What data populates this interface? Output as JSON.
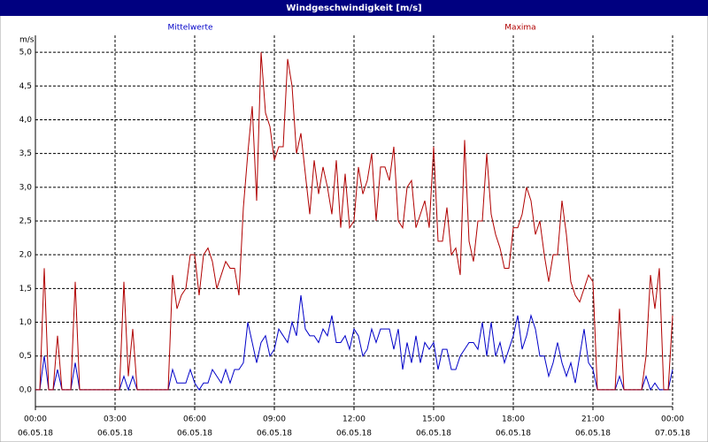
{
  "chart_data": {
    "type": "line",
    "title": "Windgeschwindigkeit [m/s]",
    "y_label": "m/s",
    "xlim": [
      0,
      1440
    ],
    "ylim": [
      -0.25,
      5.25
    ],
    "grid": true,
    "xticks": [
      {
        "value": 0,
        "label": "00:00",
        "date": "06.05.18"
      },
      {
        "value": 180,
        "label": "03:00",
        "date": "06.05.18"
      },
      {
        "value": 360,
        "label": "06:00",
        "date": "06.05.18"
      },
      {
        "value": 540,
        "label": "09:00",
        "date": "06.05.18"
      },
      {
        "value": 720,
        "label": "12:00",
        "date": "06.05.18"
      },
      {
        "value": 900,
        "label": "15:00",
        "date": "06.05.18"
      },
      {
        "value": 1080,
        "label": "18:00",
        "date": "06.05.18"
      },
      {
        "value": 1260,
        "label": "21:00",
        "date": "06.05.18"
      },
      {
        "value": 1440,
        "label": "00:00",
        "date": "07.05.18"
      }
    ],
    "yticks": [
      {
        "value": 0,
        "label": "0,0"
      },
      {
        "value": 0.5,
        "label": "0,5"
      },
      {
        "value": 1,
        "label": "1,0"
      },
      {
        "value": 1.5,
        "label": "1,5"
      },
      {
        "value": 2,
        "label": "2,0"
      },
      {
        "value": 2.5,
        "label": "2,5"
      },
      {
        "value": 3,
        "label": "3,0"
      },
      {
        "value": 3.5,
        "label": "3,5"
      },
      {
        "value": 4,
        "label": "4,0"
      },
      {
        "value": 4.5,
        "label": "4,5"
      },
      {
        "value": 5,
        "label": "5,0"
      }
    ],
    "x": [
      0,
      10,
      20,
      30,
      40,
      50,
      60,
      70,
      80,
      90,
      100,
      110,
      120,
      130,
      140,
      150,
      160,
      170,
      180,
      190,
      200,
      210,
      220,
      230,
      240,
      250,
      260,
      270,
      280,
      290,
      300,
      310,
      320,
      330,
      340,
      350,
      360,
      370,
      380,
      390,
      400,
      410,
      420,
      430,
      440,
      450,
      460,
      470,
      480,
      490,
      500,
      510,
      520,
      530,
      540,
      550,
      560,
      570,
      580,
      590,
      600,
      610,
      620,
      630,
      640,
      650,
      660,
      670,
      680,
      690,
      700,
      710,
      720,
      730,
      740,
      750,
      760,
      770,
      780,
      790,
      800,
      810,
      820,
      830,
      840,
      850,
      860,
      870,
      880,
      890,
      900,
      910,
      920,
      930,
      940,
      950,
      960,
      970,
      980,
      990,
      1000,
      1010,
      1020,
      1030,
      1040,
      1050,
      1060,
      1070,
      1080,
      1090,
      1100,
      1110,
      1120,
      1130,
      1140,
      1150,
      1160,
      1170,
      1180,
      1190,
      1200,
      1210,
      1220,
      1230,
      1240,
      1250,
      1260,
      1270,
      1280,
      1290,
      1300,
      1310,
      1320,
      1330,
      1340,
      1350,
      1360,
      1370,
      1380,
      1390,
      1400,
      1410,
      1420,
      1430,
      1440
    ],
    "series": [
      {
        "name": "Mittelwerte",
        "color": "#0000c8",
        "values": [
          0,
          0,
          0.5,
          0,
          0,
          0.3,
          0,
          0,
          0,
          0.4,
          0,
          0,
          0,
          0,
          0,
          0,
          0,
          0,
          0,
          0,
          0.2,
          0,
          0.2,
          0,
          0,
          0,
          0,
          0,
          0,
          0,
          0,
          0.3,
          0.1,
          0.1,
          0.1,
          0.3,
          0.1,
          0,
          0.1,
          0.1,
          0.3,
          0.2,
          0.1,
          0.3,
          0.1,
          0.3,
          0.3,
          0.4,
          1.0,
          0.7,
          0.4,
          0.7,
          0.8,
          0.5,
          0.6,
          0.9,
          0.8,
          0.7,
          1.0,
          0.8,
          1.4,
          0.9,
          0.8,
          0.8,
          0.7,
          0.9,
          0.8,
          1.1,
          0.7,
          0.7,
          0.8,
          0.6,
          0.9,
          0.8,
          0.5,
          0.6,
          0.9,
          0.7,
          0.9,
          0.9,
          0.9,
          0.6,
          0.9,
          0.3,
          0.7,
          0.4,
          0.8,
          0.4,
          0.7,
          0.6,
          0.7,
          0.3,
          0.6,
          0.6,
          0.3,
          0.3,
          0.5,
          0.6,
          0.7,
          0.7,
          0.6,
          1.0,
          0.5,
          1.0,
          0.5,
          0.7,
          0.4,
          0.6,
          0.8,
          1.1,
          0.6,
          0.8,
          1.1,
          0.9,
          0.5,
          0.5,
          0.2,
          0.4,
          0.7,
          0.4,
          0.2,
          0.4,
          0.1,
          0.5,
          0.9,
          0.4,
          0.3,
          0,
          0,
          0,
          0,
          0,
          0.2,
          0,
          0,
          0,
          0,
          0,
          0.2,
          0,
          0.1,
          0,
          0,
          0,
          0.3
        ]
      },
      {
        "name": "Maxima",
        "color": "#b00000",
        "values": [
          0,
          0,
          1.8,
          0,
          0,
          0.8,
          0,
          0,
          0,
          1.6,
          0,
          0,
          0,
          0,
          0,
          0,
          0,
          0,
          0,
          0,
          1.6,
          0.2,
          0.9,
          0,
          0,
          0,
          0,
          0,
          0,
          0,
          0,
          1.7,
          1.2,
          1.4,
          1.5,
          2.0,
          2.0,
          1.4,
          2.0,
          2.1,
          1.9,
          1.5,
          1.7,
          1.9,
          1.8,
          1.8,
          1.4,
          2.7,
          3.5,
          4.2,
          2.8,
          5.0,
          4.1,
          3.9,
          3.4,
          3.6,
          3.6,
          4.9,
          4.5,
          3.5,
          3.8,
          3.2,
          2.6,
          3.4,
          2.9,
          3.3,
          3.0,
          2.6,
          3.4,
          2.4,
          3.2,
          2.4,
          2.5,
          3.3,
          2.9,
          3.1,
          3.5,
          2.5,
          3.3,
          3.3,
          3.1,
          3.6,
          2.5,
          2.4,
          3.0,
          3.1,
          2.4,
          2.6,
          2.8,
          2.4,
          3.6,
          2.2,
          2.2,
          2.7,
          2.0,
          2.1,
          1.7,
          3.7,
          2.2,
          1.9,
          2.5,
          2.5,
          3.5,
          2.6,
          2.3,
          2.1,
          1.8,
          1.8,
          2.4,
          2.4,
          2.6,
          3.0,
          2.8,
          2.3,
          2.5,
          2.0,
          1.6,
          2.0,
          2.0,
          2.8,
          2.3,
          1.6,
          1.4,
          1.3,
          1.5,
          1.7,
          1.6,
          0,
          0,
          0,
          0,
          0,
          1.2,
          0,
          0,
          0,
          0,
          0,
          0.5,
          1.7,
          1.2,
          1.8,
          0,
          0,
          1.1
        ]
      }
    ]
  }
}
